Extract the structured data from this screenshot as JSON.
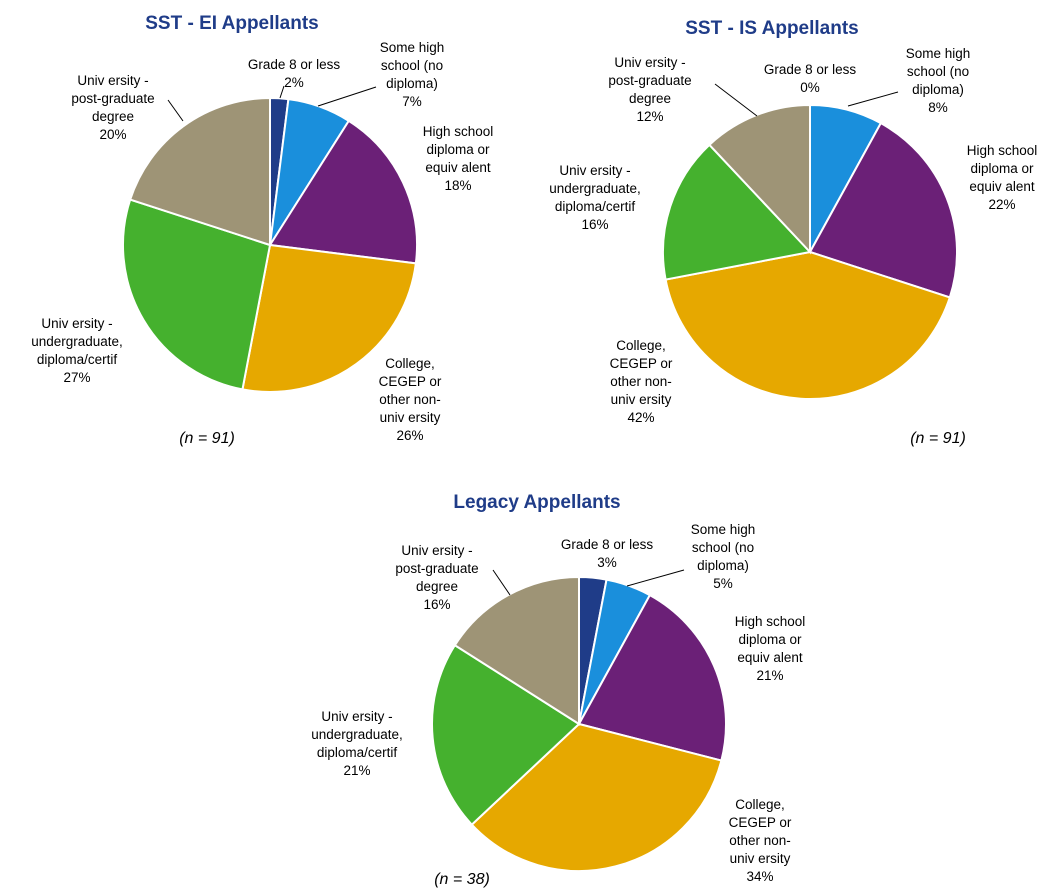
{
  "chart_data": [
    {
      "type": "pie",
      "title": "SST - EI Appellants",
      "n_label": "(n = 91)",
      "slices": [
        {
          "key": "grade8",
          "label_lines": [
            "Grade 8 or less"
          ],
          "pct_label": "2%",
          "value": 2,
          "color": "#1f3c88"
        },
        {
          "key": "somehs",
          "label_lines": [
            "Some high",
            "school (no",
            "diploma)"
          ],
          "pct_label": "7%",
          "value": 7,
          "color": "#1a8fdc"
        },
        {
          "key": "hsdip",
          "label_lines": [
            "High school",
            "diploma or",
            "equiv alent"
          ],
          "pct_label": "18%",
          "value": 18,
          "color": "#6b2077"
        },
        {
          "key": "college",
          "label_lines": [
            "College,",
            "CEGEP or",
            "other non-",
            "univ ersity"
          ],
          "pct_label": "26%",
          "value": 26,
          "color": "#e6a800"
        },
        {
          "key": "undergrad",
          "label_lines": [
            "Univ ersity -",
            "undergraduate,",
            "diploma/certif"
          ],
          "pct_label": "27%",
          "value": 27,
          "color": "#45b12e"
        },
        {
          "key": "postgrad",
          "label_lines": [
            "Univ ersity -",
            "post-graduate",
            "degree"
          ],
          "pct_label": "20%",
          "value": 20,
          "color": "#9e9476"
        }
      ]
    },
    {
      "type": "pie",
      "title": "SST - IS Appellants",
      "n_label": "(n = 91)",
      "slices": [
        {
          "key": "grade8",
          "label_lines": [
            "Grade 8 or less"
          ],
          "pct_label": "0%",
          "value": 0,
          "color": "#1f3c88"
        },
        {
          "key": "somehs",
          "label_lines": [
            "Some high",
            "school (no",
            "diploma)"
          ],
          "pct_label": "8%",
          "value": 8,
          "color": "#1a8fdc"
        },
        {
          "key": "hsdip",
          "label_lines": [
            "High school",
            "diploma or",
            "equiv alent"
          ],
          "pct_label": "22%",
          "value": 22,
          "color": "#6b2077"
        },
        {
          "key": "college",
          "label_lines": [
            "College,",
            "CEGEP or",
            "other non-",
            "univ ersity"
          ],
          "pct_label": "42%",
          "value": 42,
          "color": "#e6a800"
        },
        {
          "key": "undergrad",
          "label_lines": [
            "Univ ersity -",
            "undergraduate,",
            "diploma/certif"
          ],
          "pct_label": "16%",
          "value": 16,
          "color": "#45b12e"
        },
        {
          "key": "postgrad",
          "label_lines": [
            "Univ ersity -",
            "post-graduate",
            "degree"
          ],
          "pct_label": "12%",
          "value": 12,
          "color": "#9e9476"
        }
      ]
    },
    {
      "type": "pie",
      "title": "Legacy Appellants",
      "n_label": "(n = 38)",
      "slices": [
        {
          "key": "grade8",
          "label_lines": [
            "Grade 8 or less"
          ],
          "pct_label": "3%",
          "value": 3,
          "color": "#1f3c88"
        },
        {
          "key": "somehs",
          "label_lines": [
            "Some high",
            "school (no",
            "diploma)"
          ],
          "pct_label": "5%",
          "value": 5,
          "color": "#1a8fdc"
        },
        {
          "key": "hsdip",
          "label_lines": [
            "High school",
            "diploma or",
            "equiv alent"
          ],
          "pct_label": "21%",
          "value": 21,
          "color": "#6b2077"
        },
        {
          "key": "college",
          "label_lines": [
            "College,",
            "CEGEP or",
            "other non-",
            "univ ersity"
          ],
          "pct_label": "34%",
          "value": 34,
          "color": "#e6a800"
        },
        {
          "key": "undergrad",
          "label_lines": [
            "Univ ersity -",
            "undergraduate,",
            "diploma/certif"
          ],
          "pct_label": "21%",
          "value": 21,
          "color": "#45b12e"
        },
        {
          "key": "postgrad",
          "label_lines": [
            "Univ ersity -",
            "post-graduate",
            "degree"
          ],
          "pct_label": "16%",
          "value": 16,
          "color": "#9e9476"
        }
      ]
    }
  ]
}
